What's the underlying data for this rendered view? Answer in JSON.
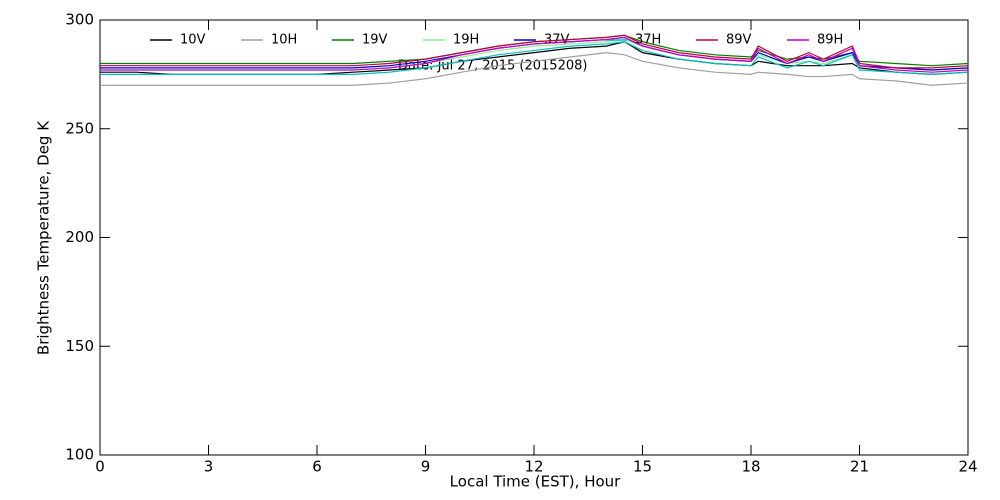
{
  "chart_data": {
    "type": "line",
    "xlabel": "Local Time (EST), Hour",
    "ylabel": "Brightness Temperature, Deg K",
    "annotation": "Date: Jul 27, 2015 (2015208)",
    "x": [
      0,
      1,
      2,
      3,
      4,
      5,
      6,
      7,
      8,
      9,
      10,
      11,
      12,
      13,
      14,
      14.5,
      15,
      16,
      17,
      18,
      18.2,
      19,
      19.6,
      20,
      20.8,
      21,
      22,
      23,
      24
    ],
    "series": [
      {
        "name": "10V",
        "color": "#000000",
        "values": [
          276,
          276,
          275,
          275,
          275,
          275,
          275,
          276,
          277,
          278,
          281,
          283,
          285,
          287,
          288,
          290,
          285,
          282,
          280,
          279,
          281,
          279,
          279,
          279,
          280,
          278,
          276,
          275,
          276
        ]
      },
      {
        "name": "10H",
        "color": "#a0a0a0",
        "values": [
          270,
          270,
          270,
          270,
          270,
          270,
          270,
          270,
          271,
          273,
          276,
          279,
          281,
          283,
          285,
          284,
          281,
          278,
          276,
          275,
          276,
          275,
          274,
          274,
          275,
          273,
          272,
          270,
          271
        ]
      },
      {
        "name": "19V",
        "color": "#008000",
        "values": [
          280,
          280,
          280,
          280,
          280,
          280,
          280,
          280,
          281,
          282,
          285,
          288,
          290,
          291,
          292,
          293,
          290,
          286,
          284,
          283,
          286,
          282,
          283,
          282,
          285,
          281,
          280,
          279,
          280
        ]
      },
      {
        "name": "19H",
        "color": "#90ee90",
        "values": [
          277,
          277,
          277,
          277,
          277,
          277,
          277,
          277,
          278,
          280,
          283,
          286,
          288,
          289,
          290,
          291,
          288,
          284,
          282,
          281,
          284,
          280,
          281,
          280,
          284,
          279,
          278,
          277,
          278
        ]
      },
      {
        "name": "37V",
        "color": "#0000c0",
        "values": [
          278,
          278,
          278,
          278,
          278,
          278,
          278,
          278,
          279,
          281,
          284,
          287,
          289,
          290,
          291,
          292,
          288,
          284,
          282,
          281,
          285,
          280,
          283,
          281,
          285,
          279,
          278,
          277,
          278
        ]
      },
      {
        "name": "37H",
        "color": "#00c0c0",
        "values": [
          275,
          275,
          275,
          275,
          275,
          275,
          275,
          275,
          276,
          278,
          281,
          284,
          286,
          288,
          289,
          290,
          286,
          282,
          280,
          279,
          283,
          278,
          281,
          279,
          284,
          277,
          276,
          275,
          276
        ]
      },
      {
        "name": "89V",
        "color": "#c00040",
        "values": [
          279,
          279,
          279,
          279,
          279,
          279,
          279,
          279,
          280,
          282,
          285,
          288,
          290,
          291,
          292,
          293,
          289,
          285,
          283,
          282,
          288,
          281,
          285,
          282,
          288,
          280,
          278,
          278,
          279
        ]
      },
      {
        "name": "89H",
        "color": "#c000c0",
        "values": [
          277,
          277,
          277,
          277,
          277,
          277,
          277,
          277,
          278,
          280,
          284,
          287,
          289,
          290,
          291,
          292,
          288,
          284,
          282,
          281,
          287,
          280,
          284,
          281,
          287,
          279,
          277,
          276,
          277
        ]
      }
    ],
    "xlim": [
      0,
      24
    ],
    "xticks": [
      0,
      3,
      6,
      9,
      12,
      15,
      18,
      21,
      24
    ],
    "ylim": [
      100,
      300
    ],
    "yticks": [
      100,
      150,
      200,
      250,
      300
    ]
  }
}
